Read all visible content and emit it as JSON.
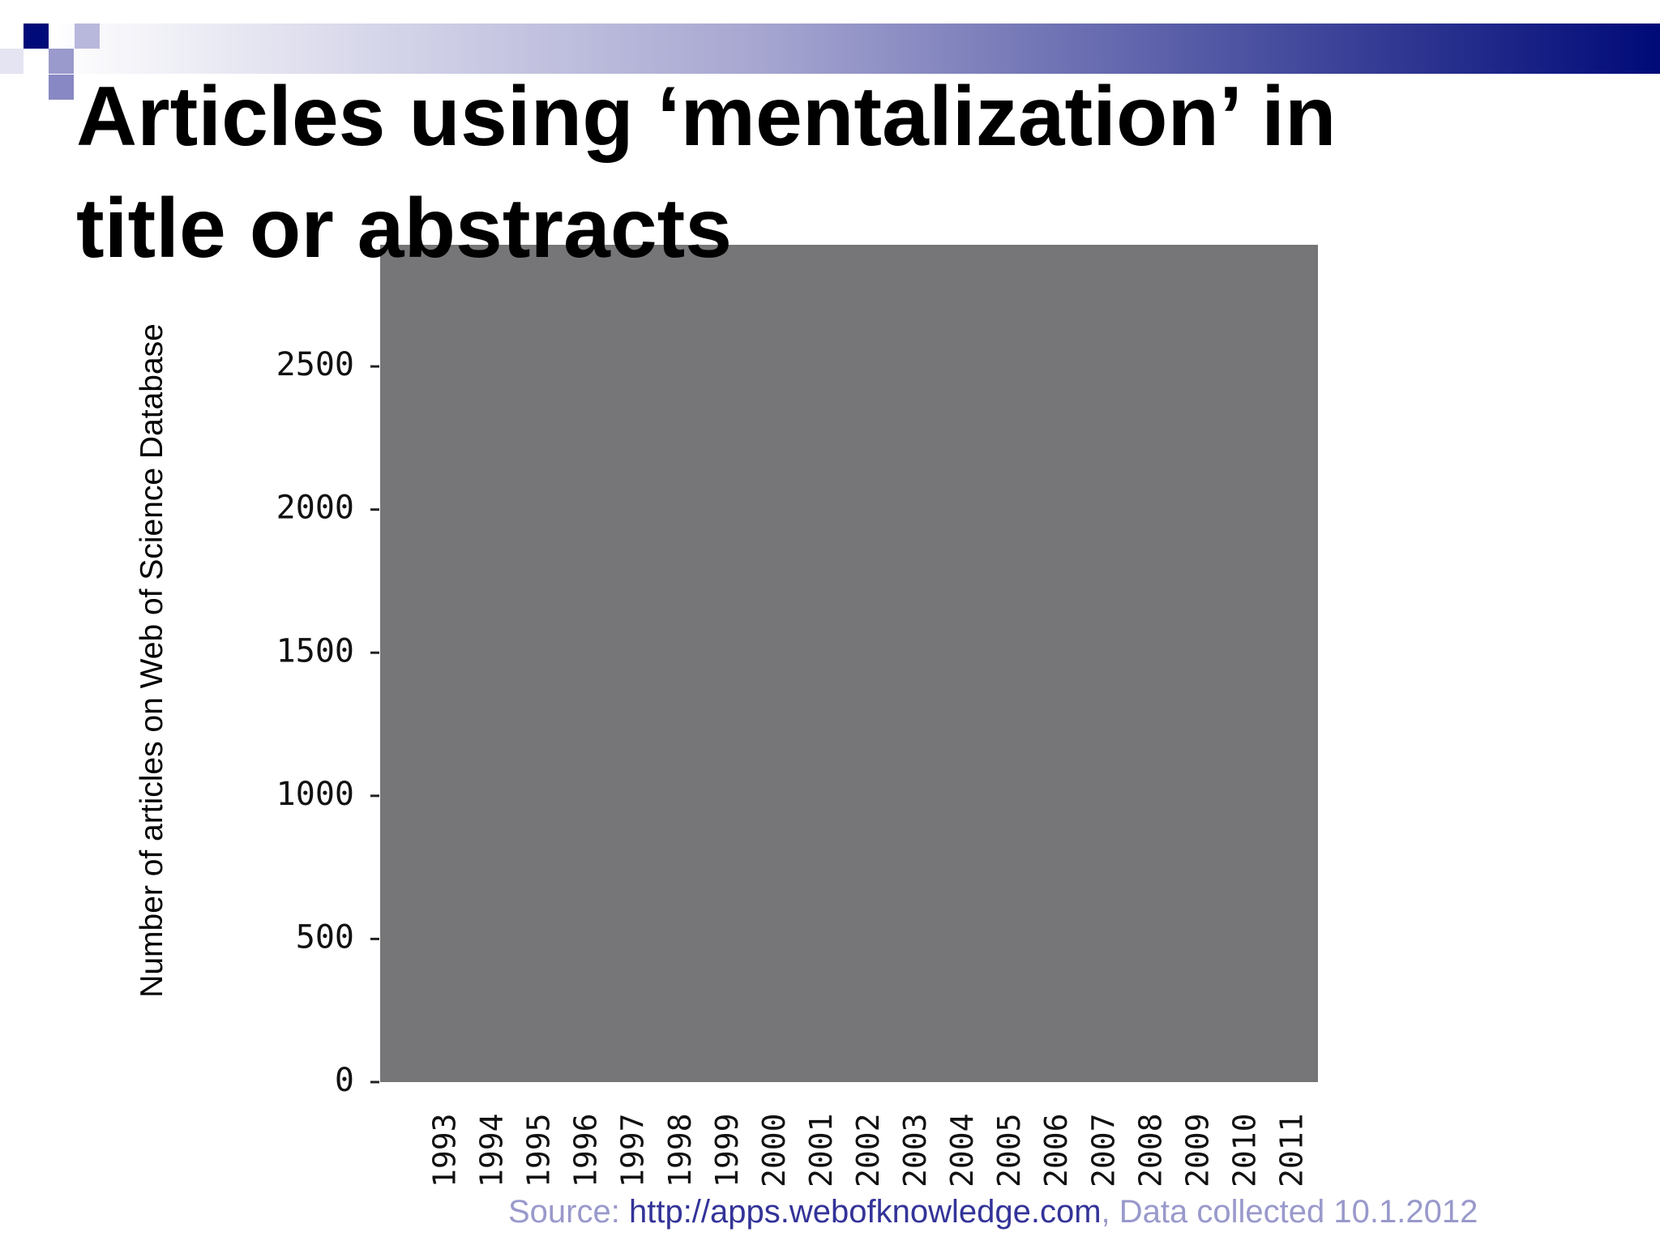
{
  "chart_data": {
    "type": "bar",
    "title": "Articles using ‘mentalization’ in title or abstracts",
    "y_label": "Number of articles on Web of Science Database",
    "categories": [
      "1993",
      "1994",
      "1995",
      "1996",
      "1997",
      "1998",
      "1999",
      "2000",
      "2001",
      "2002",
      "2003",
      "2004",
      "2005",
      "2006",
      "2007",
      "2008",
      "2009",
      "2010",
      "2011"
    ],
    "ylim": [
      0,
      2925
    ],
    "yticks": [
      0,
      500,
      1000,
      1500,
      2000,
      2500
    ],
    "plot_background": "#767578",
    "source": {
      "prefix": "Source: ",
      "link": "http://apps.webofknowledge.com",
      "suffix": ", Data collected 10.1.2012"
    }
  }
}
